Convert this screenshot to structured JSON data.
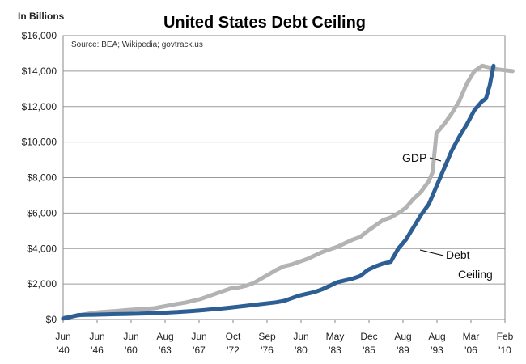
{
  "chart_data": {
    "type": "line",
    "title": "United States Debt Ceiling",
    "unit_label": "In Billions",
    "source": "Source: BEA; Wikipedia; govtrack.us",
    "ylim": [
      0,
      16000
    ],
    "y_ticks": [
      0,
      2000,
      4000,
      6000,
      8000,
      10000,
      12000,
      14000,
      16000
    ],
    "y_tick_labels": [
      "$0",
      "$2,000",
      "$4,000",
      "$6,000",
      "$8,000",
      "$10,000",
      "$12,000",
      "$14,000",
      "$16,000"
    ],
    "xlim": [
      1940.4,
      2010.1
    ],
    "x_ticks": [
      {
        "value": 1940.4,
        "line1": "Jun",
        "line2": "'40"
      },
      {
        "value": 1946.4,
        "line1": "Jun",
        "line2": "'46"
      },
      {
        "value": 1960.4,
        "line1": "Jun",
        "line2": "'60"
      },
      {
        "value": 1963.6,
        "line1": "Aug",
        "line2": "'63"
      },
      {
        "value": 1967.4,
        "line1": "Jun",
        "line2": "'67"
      },
      {
        "value": 1972.8,
        "line1": "Oct",
        "line2": "'72"
      },
      {
        "value": 1976.7,
        "line1": "Sep",
        "line2": "'76"
      },
      {
        "value": 1980.4,
        "line1": "Jun",
        "line2": "'80"
      },
      {
        "value": 1983.4,
        "line1": "May",
        "line2": "'83"
      },
      {
        "value": 1985.9,
        "line1": "Dec",
        "line2": "'85"
      },
      {
        "value": 1989.6,
        "line1": "Aug",
        "line2": "'89"
      },
      {
        "value": 1993.6,
        "line1": "Aug",
        "line2": "'93"
      },
      {
        "value": 2006.2,
        "line1": "Mar",
        "line2": "'06"
      },
      {
        "value": 2010.1,
        "line1": "Feb",
        "line2": "'10"
      }
    ],
    "series": [
      {
        "name": "GDP",
        "color": "#b3b3b3",
        "points": [
          [
            0,
            100
          ],
          [
            1,
            150
          ],
          [
            2,
            230
          ],
          [
            3,
            300
          ],
          [
            4,
            380
          ],
          [
            5,
            420
          ],
          [
            6,
            450
          ],
          [
            7,
            480
          ],
          [
            8,
            520
          ],
          [
            9,
            550
          ],
          [
            10,
            580
          ],
          [
            11,
            600
          ],
          [
            12,
            640
          ],
          [
            13,
            720
          ],
          [
            14,
            800
          ],
          [
            15,
            880
          ],
          [
            16,
            950
          ],
          [
            17,
            1050
          ],
          [
            18,
            1150
          ],
          [
            19,
            1300
          ],
          [
            20,
            1450
          ],
          [
            21,
            1600
          ],
          [
            22,
            1750
          ],
          [
            23,
            1800
          ],
          [
            24,
            1900
          ],
          [
            25,
            2050
          ],
          [
            26,
            2300
          ],
          [
            27,
            2550
          ],
          [
            28,
            2800
          ],
          [
            29,
            3000
          ],
          [
            30,
            3100
          ],
          [
            31,
            3250
          ],
          [
            32,
            3400
          ],
          [
            33,
            3600
          ],
          [
            34,
            3800
          ],
          [
            35,
            3950
          ],
          [
            36,
            4100
          ],
          [
            37,
            4300
          ],
          [
            38,
            4500
          ],
          [
            39,
            4650
          ],
          [
            40,
            5000
          ],
          [
            41,
            5300
          ],
          [
            42,
            5600
          ],
          [
            43,
            5750
          ],
          [
            44,
            6000
          ],
          [
            45,
            6300
          ],
          [
            46,
            6800
          ],
          [
            47,
            7200
          ],
          [
            48,
            7800
          ],
          [
            48.5,
            8300
          ],
          [
            49,
            10500
          ],
          [
            50,
            11000
          ],
          [
            51,
            11600
          ],
          [
            52,
            12300
          ],
          [
            53,
            13300
          ],
          [
            54,
            14000
          ],
          [
            55,
            14300
          ],
          [
            56,
            14200
          ],
          [
            57,
            14100
          ],
          [
            58,
            14050
          ],
          [
            59,
            14000
          ]
        ]
      },
      {
        "name": "Debt Ceiling",
        "color": "#2e5f94",
        "points": [
          [
            0,
            50
          ],
          [
            1,
            150
          ],
          [
            2,
            250
          ],
          [
            3,
            260
          ],
          [
            4,
            270
          ],
          [
            5,
            280
          ],
          [
            6,
            290
          ],
          [
            7,
            300
          ],
          [
            8,
            310
          ],
          [
            9,
            320
          ],
          [
            10,
            330
          ],
          [
            11,
            340
          ],
          [
            12,
            360
          ],
          [
            13,
            380
          ],
          [
            14,
            400
          ],
          [
            15,
            420
          ],
          [
            16,
            450
          ],
          [
            17,
            480
          ],
          [
            18,
            510
          ],
          [
            19,
            550
          ],
          [
            20,
            590
          ],
          [
            21,
            630
          ],
          [
            22,
            670
          ],
          [
            23,
            720
          ],
          [
            24,
            770
          ],
          [
            25,
            820
          ],
          [
            26,
            870
          ],
          [
            27,
            920
          ],
          [
            28,
            970
          ],
          [
            29,
            1050
          ],
          [
            30,
            1200
          ],
          [
            31,
            1350
          ],
          [
            32,
            1450
          ],
          [
            33,
            1550
          ],
          [
            34,
            1700
          ],
          [
            35,
            1900
          ],
          [
            36,
            2100
          ],
          [
            37,
            2200
          ],
          [
            38,
            2300
          ],
          [
            39,
            2450
          ],
          [
            40,
            2800
          ],
          [
            41,
            3000
          ],
          [
            42,
            3150
          ],
          [
            43,
            3250
          ],
          [
            44,
            4000
          ],
          [
            45,
            4500
          ],
          [
            46,
            5200
          ],
          [
            47,
            5900
          ],
          [
            48,
            6500
          ],
          [
            49,
            7500
          ],
          [
            50,
            8500
          ],
          [
            51,
            9500
          ],
          [
            52,
            10300
          ],
          [
            53,
            11000
          ],
          [
            54,
            11800
          ],
          [
            55,
            12300
          ],
          [
            55.5,
            12450
          ],
          [
            56,
            13200
          ],
          [
            56.5,
            14300
          ]
        ]
      }
    ],
    "annotations": [
      {
        "text": "GDP",
        "series": "GDP"
      },
      {
        "text_lines": [
          "Debt",
          "Ceiling"
        ],
        "series": "Debt Ceiling"
      }
    ],
    "legend": "none",
    "grid": "horizontal"
  }
}
